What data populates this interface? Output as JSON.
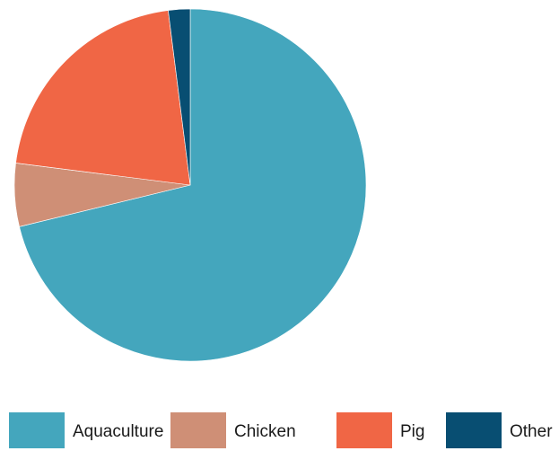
{
  "chart_data": {
    "type": "pie",
    "title": "",
    "start_angle_deg": 0,
    "direction": "clockwise",
    "slices": [
      {
        "label": "Aquaculture",
        "value": 71.2,
        "color": "#44a6bd"
      },
      {
        "label": "Chicken",
        "value": 5.8,
        "color": "#cf8f76"
      },
      {
        "label": "Pig",
        "value": 21.0,
        "color": "#f06645"
      },
      {
        "label": "Other",
        "value": 2.0,
        "color": "#084e72"
      }
    ],
    "legend": {
      "position": "bottom",
      "items": [
        "Aquaculture",
        "Chicken",
        "Pig",
        "Other"
      ]
    }
  }
}
